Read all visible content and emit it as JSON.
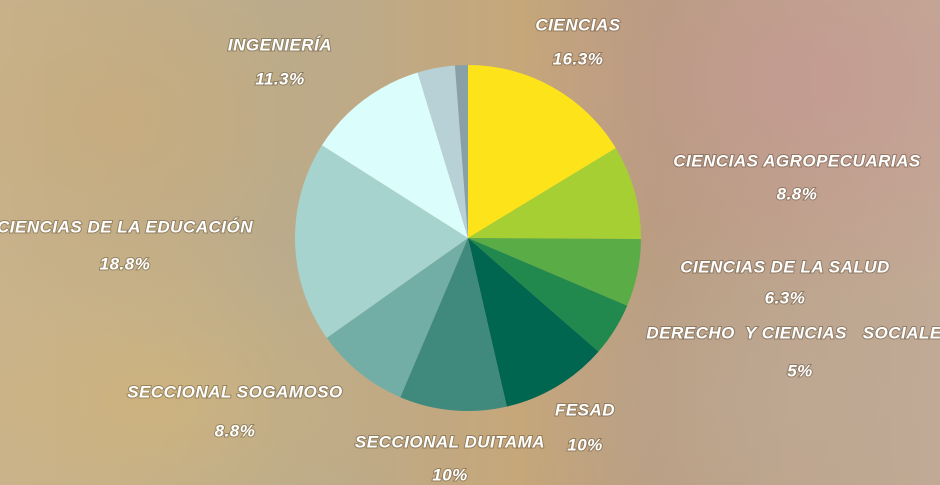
{
  "chart_data": {
    "type": "pie",
    "categories": [
      "CIENCIAS",
      "CIENCIAS AGROPECUARIAS",
      "CIENCIAS DE LA SALUD",
      "DERECHO  Y CIENCIAS   SOCIALES",
      "FESAD",
      "SECCIONAL DUITAMA",
      "SECCIONAL SOGAMOSO",
      "CIENCIAS DE LA EDUCACIÓN",
      "INGENIERÍA",
      null,
      null
    ],
    "values": [
      16.3,
      8.8,
      6.3,
      5,
      10,
      10,
      8.8,
      18.8,
      11.3,
      3.5,
      1.2
    ],
    "value_labels": [
      "16.3%",
      "8.8%",
      "6.3%",
      "5%",
      "10%",
      "10%",
      "8.8%",
      "18.8%",
      "11.3%",
      null,
      null
    ],
    "colors": [
      "#fde41a",
      "#a6cf33",
      "#5aac47",
      "#22894e",
      "#006650",
      "#3f8a7c",
      "#72ada6",
      "#a7d3cf",
      "#dbfdfc",
      "#b7d1d6",
      "#8aa0a8"
    ]
  }
}
